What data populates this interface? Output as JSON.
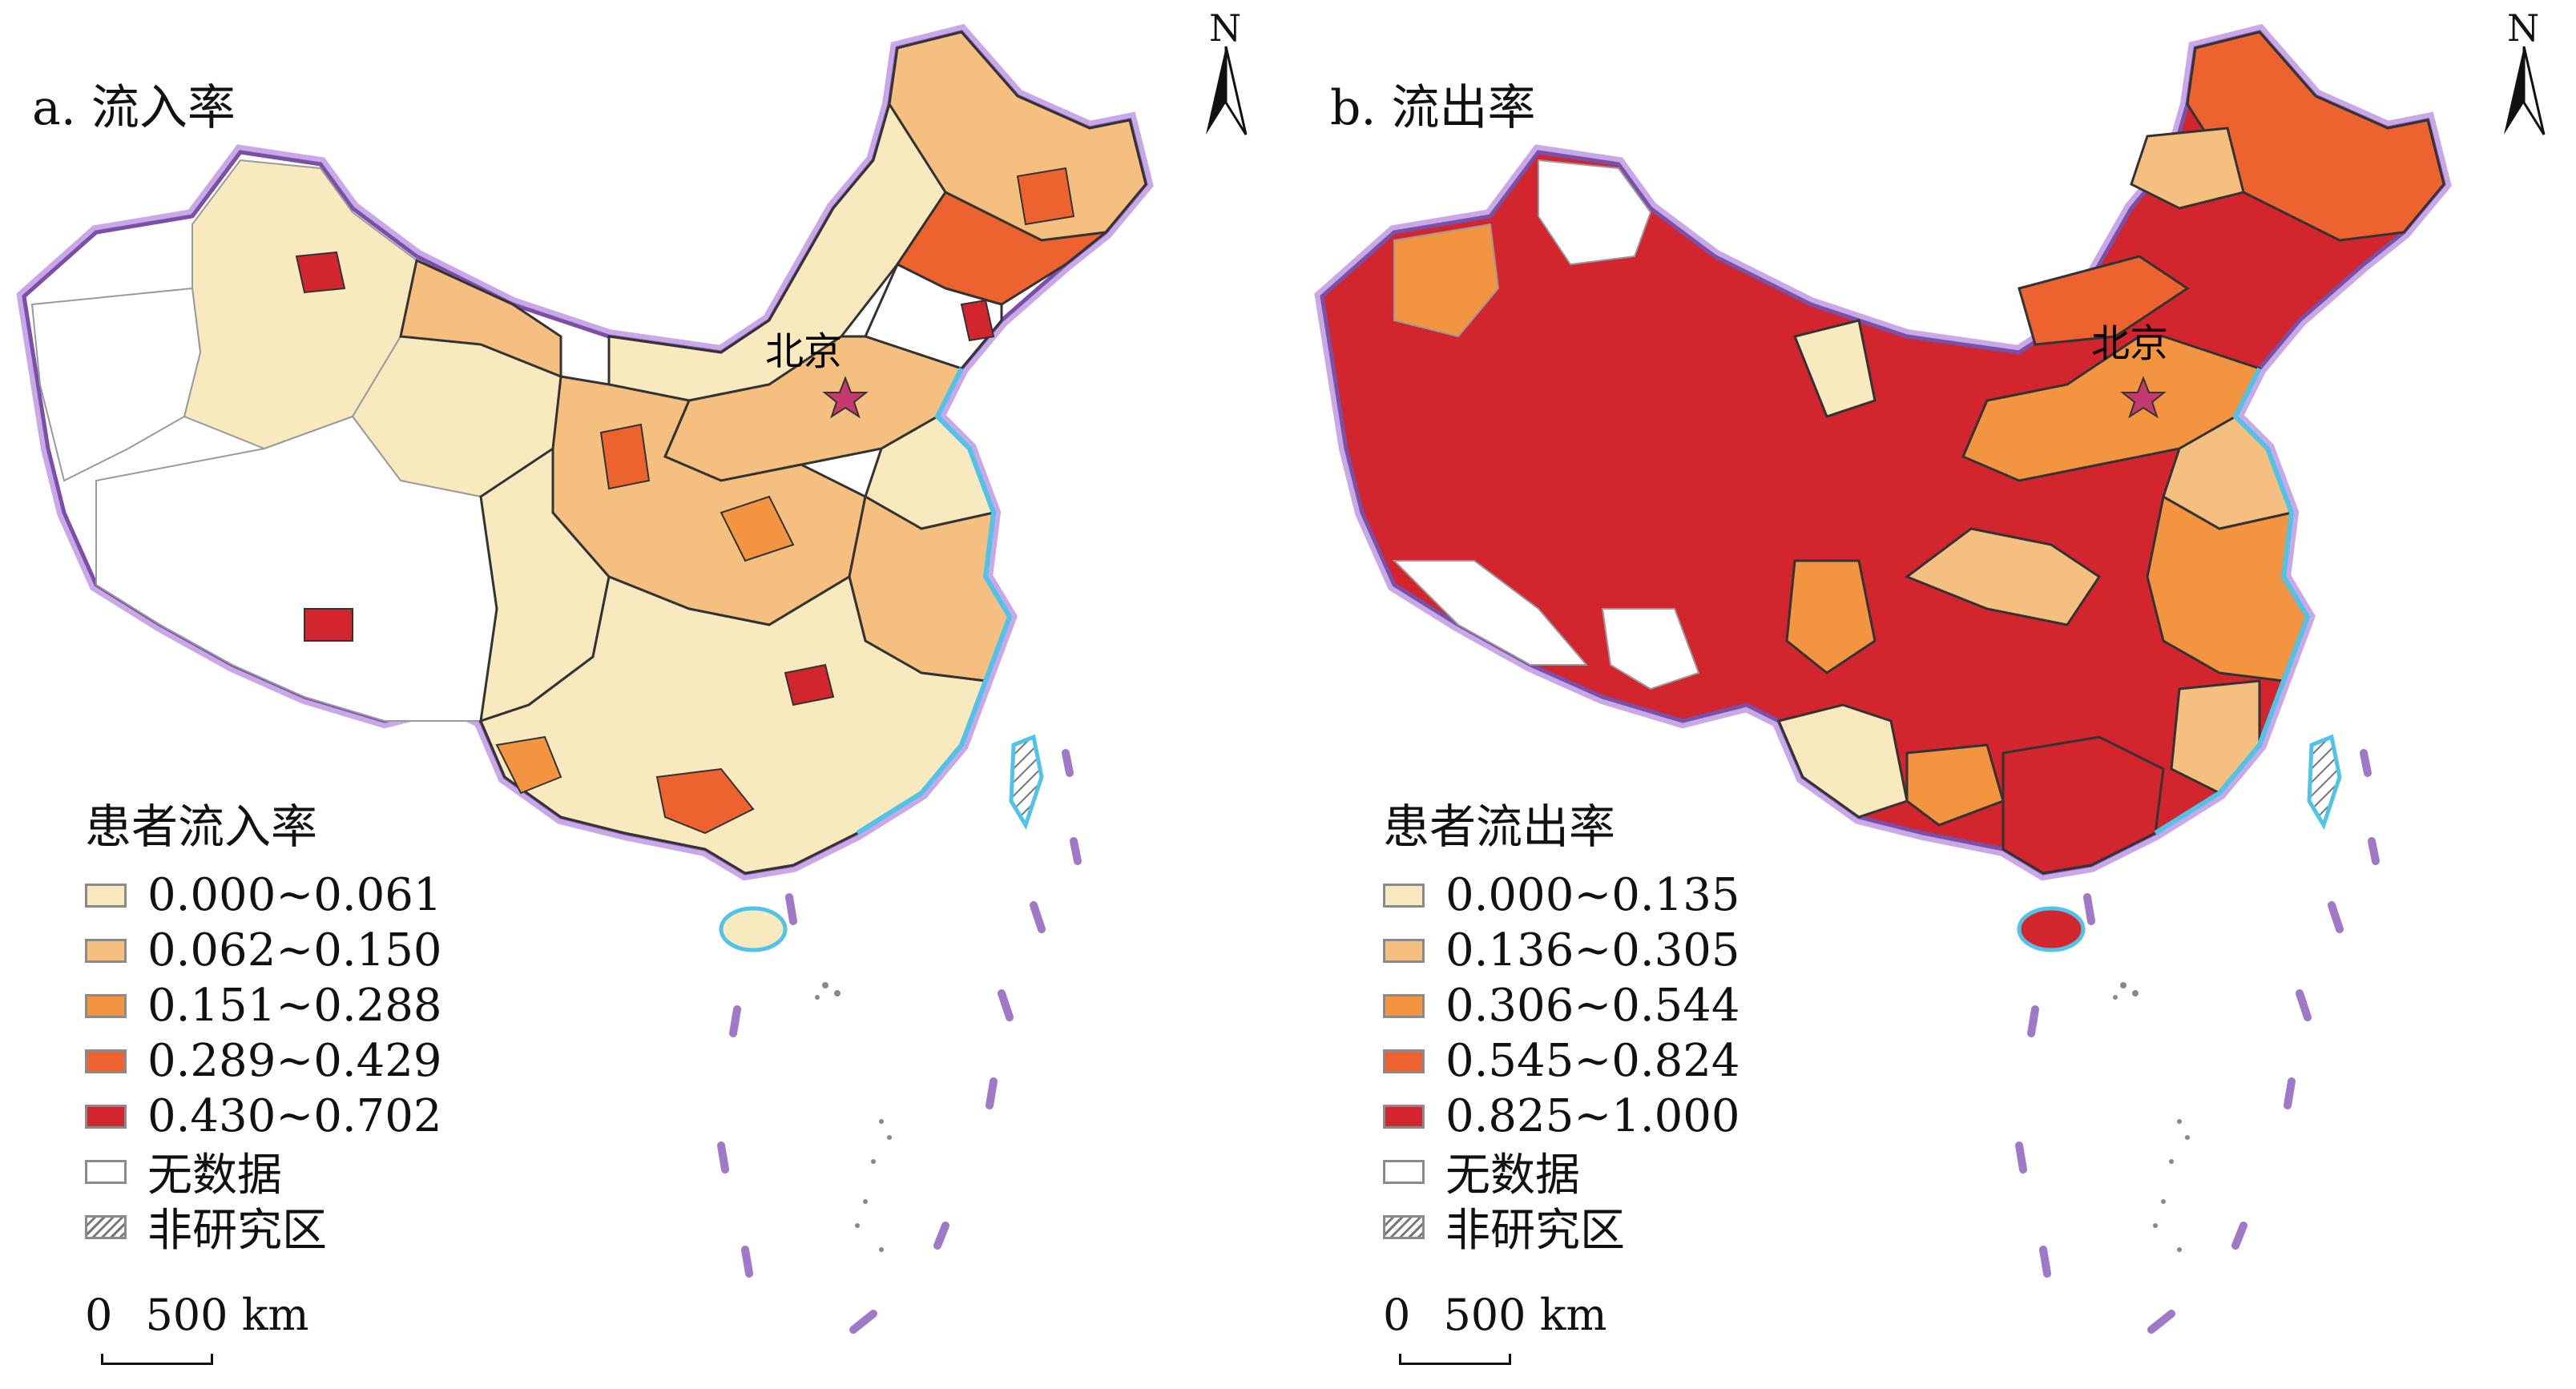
{
  "panels": [
    {
      "id": "a",
      "title": "a. 流入率",
      "legend": {
        "title": "患者流入率",
        "items": [
          {
            "label": "0.000~0.061",
            "color": "#f8e9be"
          },
          {
            "label": "0.062~0.150",
            "color": "#f5c07f"
          },
          {
            "label": "0.151~0.288",
            "color": "#f29440"
          },
          {
            "label": "0.289~0.429",
            "color": "#ec6330"
          },
          {
            "label": "0.430~0.702",
            "color": "#d2252d"
          },
          {
            "label": "无数据",
            "color": "#ffffff"
          },
          {
            "label": "非研究区",
            "color": "hatch"
          }
        ]
      },
      "capital_label": "北京",
      "north_label": "N",
      "scale": {
        "zero": "0",
        "distance": "500 km"
      }
    },
    {
      "id": "b",
      "title": "b. 流出率",
      "legend": {
        "title": "患者流出率",
        "items": [
          {
            "label": "0.000~0.135",
            "color": "#f8e9be"
          },
          {
            "label": "0.136~0.305",
            "color": "#f5c07f"
          },
          {
            "label": "0.306~0.544",
            "color": "#f29440"
          },
          {
            "label": "0.545~0.824",
            "color": "#ec6330"
          },
          {
            "label": "0.825~1.000",
            "color": "#d2252d"
          },
          {
            "label": "无数据",
            "color": "#ffffff"
          },
          {
            "label": "非研究区",
            "color": "hatch"
          }
        ]
      },
      "capital_label": "北京",
      "north_label": "N",
      "scale": {
        "zero": "0",
        "distance": "500 km"
      }
    }
  ],
  "colors": {
    "border": "#a078c8",
    "coast": "#4fc3e8",
    "province_line": "#333333",
    "district_line": "#9a9a9a"
  }
}
